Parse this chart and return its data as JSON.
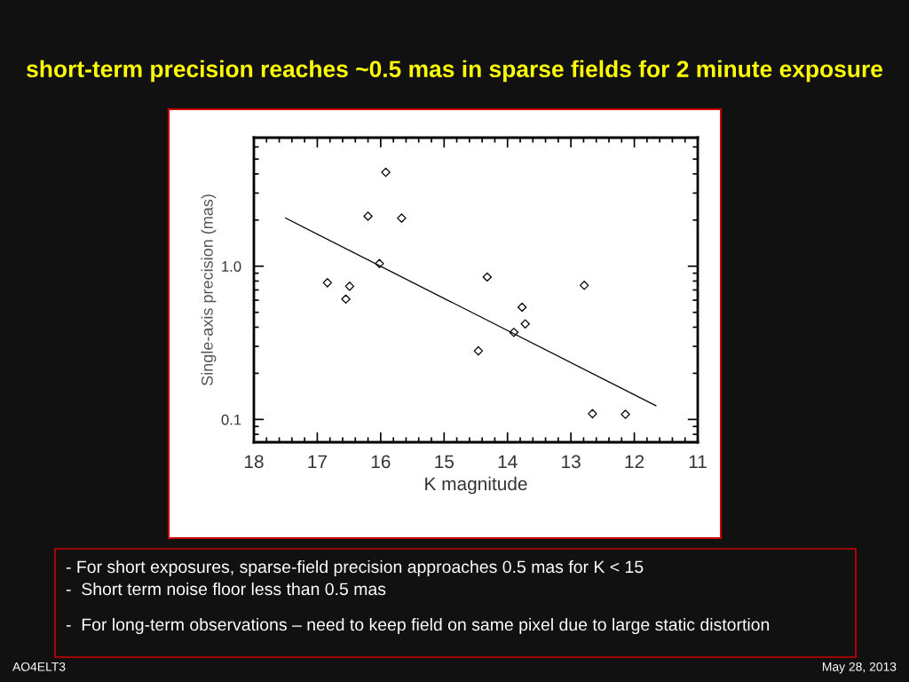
{
  "chart_data": {
    "type": "scatter",
    "title": "short-term precision reaches ~0.5 mas in sparse fields for 2 minute exposure",
    "xlabel": "K magnitude",
    "ylabel": "Single-axis precision (mas)",
    "xlim": [
      18,
      11
    ],
    "xticks": [
      18,
      17,
      16,
      15,
      14,
      13,
      12,
      11
    ],
    "ylim": [
      0.071,
      6.9
    ],
    "yticks": [
      {
        "value": 0.1,
        "label": "0.1"
      },
      {
        "value": 1,
        "label": "1.0"
      }
    ],
    "log": "y",
    "grid": false,
    "legend": false,
    "marker": "diamond",
    "series": [
      {
        "color": "#000000",
        "x": [
          16.84,
          16.49,
          16.55,
          16.2,
          16.02,
          15.92,
          15.67,
          14.46,
          14.32,
          13.9,
          13.77,
          13.72,
          12.79,
          12.66,
          12.14
        ],
        "values": [
          0.78,
          0.74,
          0.61,
          2.12,
          1.04,
          4.1,
          2.06,
          0.28,
          0.85,
          0.37,
          0.54,
          0.42,
          0.75,
          0.109,
          0.108
        ]
      },
      {
        "type": "line",
        "color": "#000000",
        "marker": "none",
        "line_style": "solid",
        "x": [
          17.5,
          11.66
        ],
        "values": [
          2.06,
          0.123
        ]
      }
    ],
    "annotations": [
      "- For short exposures, sparse-field precision approaches 0.5 mas for K < 15",
      "-  Short term noise floor less than 0.5 mas",
      "-  For long-term observations – need to keep field on same pixel due to large static distortion",
      "AO4ELT3",
      "May 28, 2013"
    ]
  }
}
